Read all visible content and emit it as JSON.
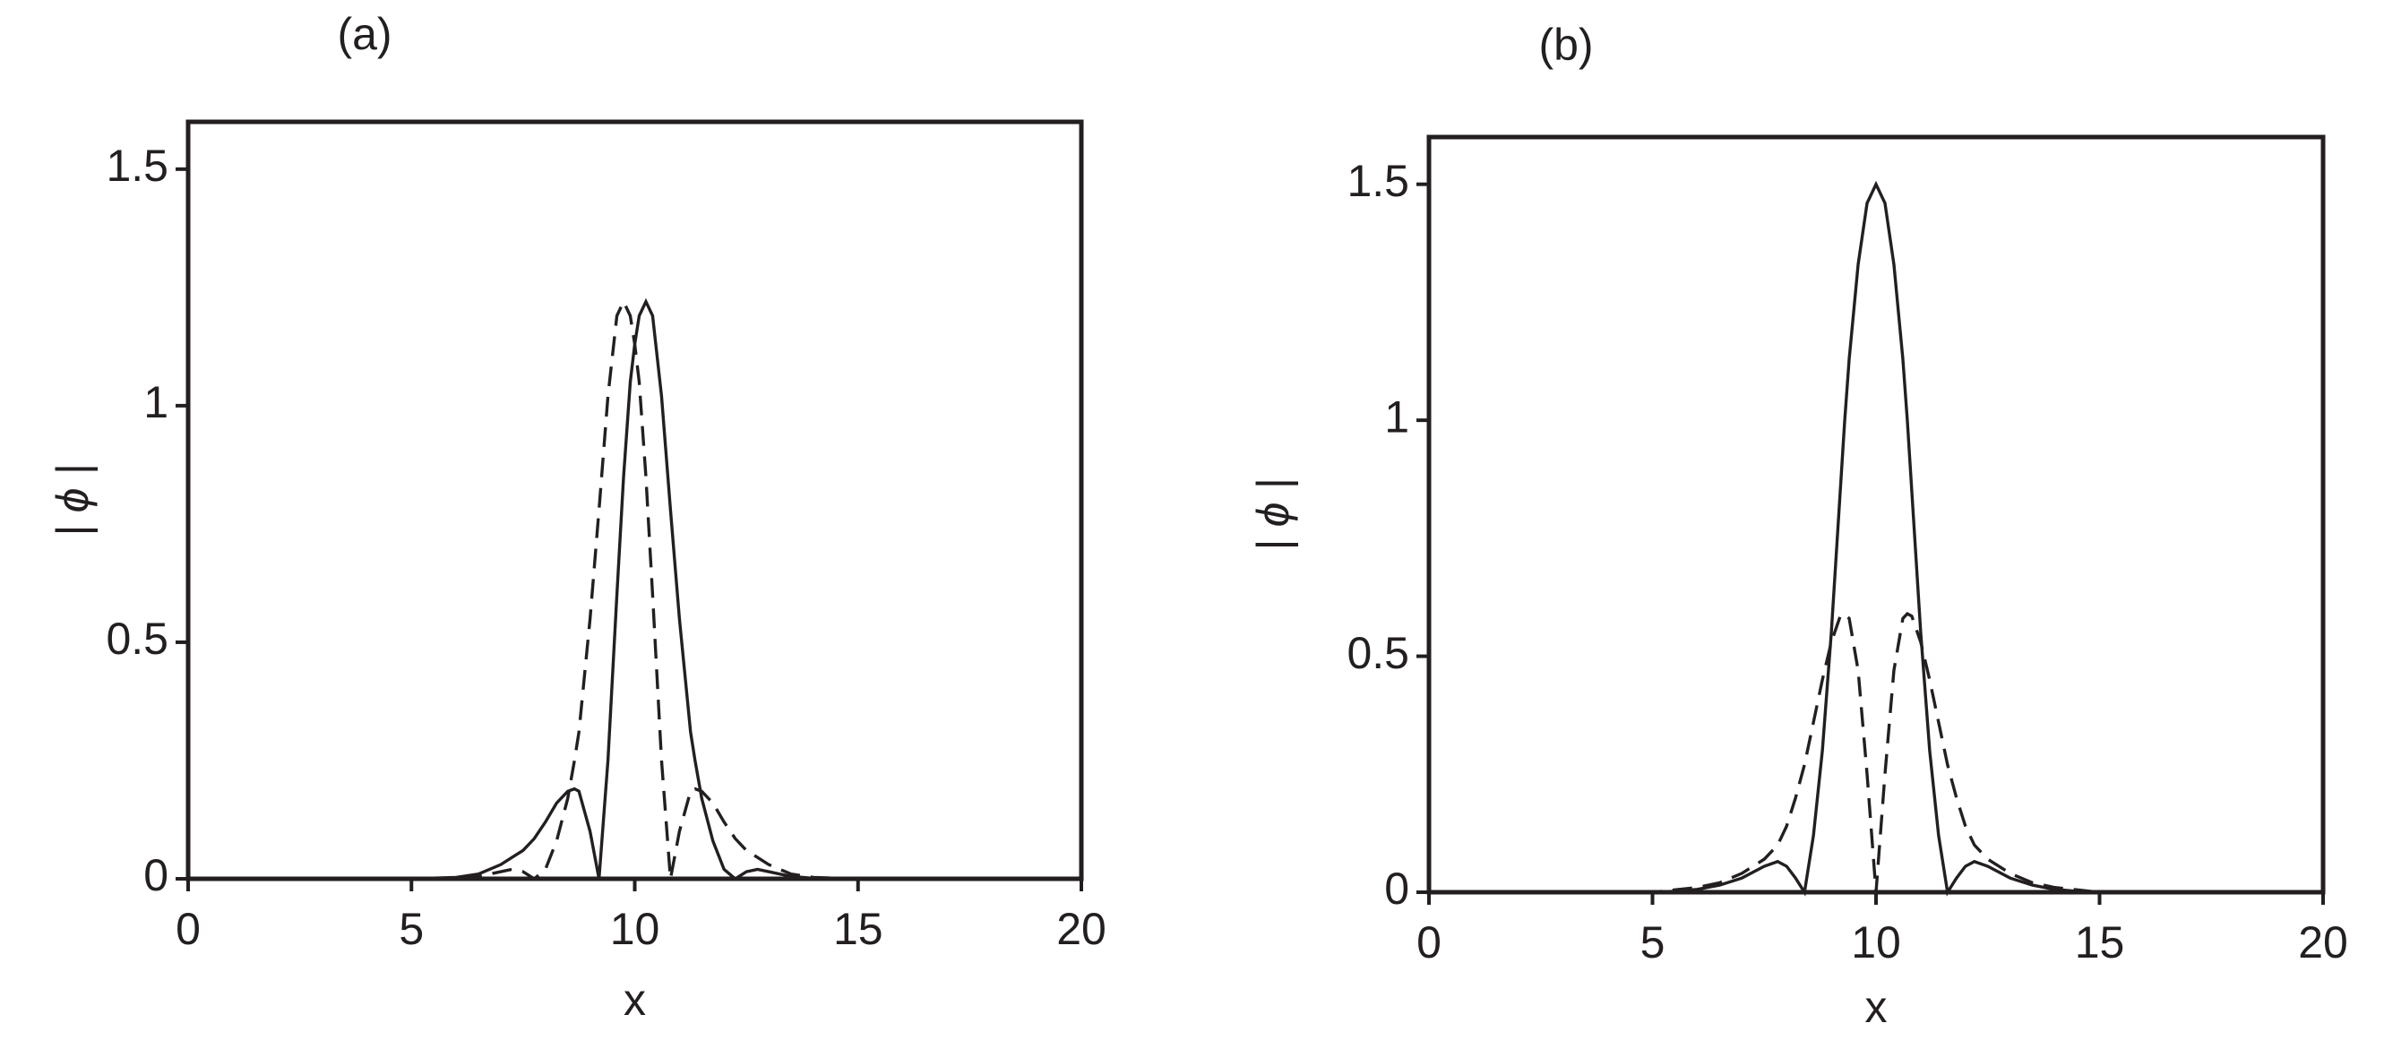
{
  "chart_data": [
    {
      "type": "line",
      "title": "(a)",
      "xlabel": "x",
      "ylabel": "| ϕ |",
      "xlim": [
        0,
        20
      ],
      "xticks": [
        0,
        5,
        10,
        15,
        20
      ],
      "ylim": [
        0,
        1.6
      ],
      "yticks": [
        0,
        0.5,
        1,
        1.5
      ],
      "x": [
        0,
        5,
        6,
        6.5,
        7,
        7.25,
        7.5,
        7.75,
        8,
        8.25,
        8.5,
        8.65,
        8.75,
        9,
        9.2,
        9.4,
        9.6,
        9.75,
        9.9,
        10,
        10.1,
        10.25,
        10.4,
        10.6,
        10.8,
        11,
        11.25,
        11.35,
        11.5,
        11.75,
        12,
        12.25,
        12.5,
        12.75,
        13,
        13.5,
        14,
        15,
        20
      ],
      "series": [
        {
          "color": "#231f20",
          "dash": "solid",
          "values": [
            0,
            0,
            0.003,
            0.01,
            0.03,
            0.045,
            0.06,
            0.085,
            0.12,
            0.16,
            0.185,
            0.19,
            0.185,
            0.1,
            0,
            0.25,
            0.6,
            0.85,
            1.05,
            1.13,
            1.19,
            1.22,
            1.19,
            1.02,
            0.78,
            0.55,
            0.31,
            0.25,
            0.17,
            0.08,
            0.02,
            0,
            0.015,
            0.02,
            0.015,
            0.005,
            0.001,
            0,
            0
          ]
        },
        {
          "color": "#231f20",
          "dash": "dashed",
          "values": [
            0,
            0,
            0.001,
            0.005,
            0.015,
            0.02,
            0.015,
            0,
            0.02,
            0.08,
            0.17,
            0.25,
            0.31,
            0.55,
            0.78,
            1.02,
            1.19,
            1.22,
            1.19,
            1.13,
            1.05,
            0.85,
            0.6,
            0.25,
            0,
            0.1,
            0.185,
            0.19,
            0.185,
            0.16,
            0.12,
            0.085,
            0.06,
            0.045,
            0.03,
            0.01,
            0.003,
            0,
            0
          ]
        }
      ]
    },
    {
      "type": "line",
      "title": "(b)",
      "xlabel": "x",
      "ylabel": "| ϕ |",
      "xlim": [
        0,
        20
      ],
      "xticks": [
        0,
        5,
        10,
        15,
        20
      ],
      "ylim": [
        0,
        1.6
      ],
      "yticks": [
        0,
        0.5,
        1,
        1.5
      ],
      "x": [
        0,
        5,
        5.5,
        6,
        6.5,
        7,
        7.5,
        7.8,
        8,
        8.2,
        8.4,
        8.6,
        8.8,
        9,
        9.2,
        9.3,
        9.4,
        9.6,
        9.8,
        10,
        10.2,
        10.4,
        10.6,
        10.7,
        10.8,
        11,
        11.2,
        11.4,
        11.6,
        11.8,
        12,
        12.2,
        12.5,
        13,
        13.5,
        14,
        14.5,
        15,
        20
      ],
      "series": [
        {
          "color": "#231f20",
          "dash": "solid",
          "values": [
            0,
            0,
            0.002,
            0.006,
            0.015,
            0.03,
            0.055,
            0.065,
            0.055,
            0.03,
            0,
            0.12,
            0.3,
            0.55,
            0.85,
            1.0,
            1.13,
            1.33,
            1.46,
            1.5,
            1.46,
            1.33,
            1.13,
            1.0,
            0.85,
            0.55,
            0.3,
            0.12,
            0,
            0.03,
            0.055,
            0.065,
            0.055,
            0.03,
            0.015,
            0.006,
            0.002,
            0,
            0
          ]
        },
        {
          "color": "#231f20",
          "dash": "dashed",
          "values": [
            0,
            0,
            0.005,
            0.01,
            0.02,
            0.04,
            0.07,
            0.1,
            0.14,
            0.2,
            0.27,
            0.36,
            0.45,
            0.53,
            0.585,
            0.59,
            0.58,
            0.47,
            0.25,
            0,
            0.25,
            0.47,
            0.58,
            0.59,
            0.585,
            0.53,
            0.45,
            0.36,
            0.27,
            0.2,
            0.14,
            0.1,
            0.07,
            0.04,
            0.02,
            0.01,
            0.005,
            0,
            0
          ]
        }
      ]
    }
  ]
}
